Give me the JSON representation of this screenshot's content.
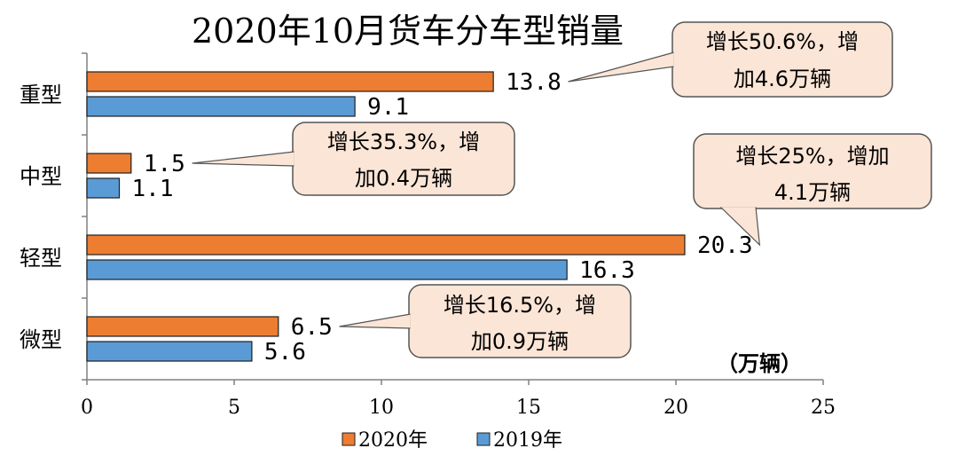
{
  "chart_data": {
    "type": "bar",
    "orientation": "horizontal",
    "title": "2020年10月货车分车型销量",
    "categories": [
      "重型",
      "中型",
      "轻型",
      "微型"
    ],
    "series": [
      {
        "name": "2020年",
        "values": [
          13.8,
          1.5,
          20.3,
          6.5
        ],
        "color": "#ED7D31"
      },
      {
        "name": "2019年",
        "values": [
          9.1,
          1.1,
          16.3,
          5.6
        ],
        "color": "#5B9BD5"
      }
    ],
    "value_labels": {
      "2020年": [
        "13.8",
        "1.5",
        "20.3",
        "6.5"
      ],
      "2019年": [
        "9.1",
        "1.1",
        "16.3",
        "5.6"
      ]
    },
    "xlim": [
      0,
      25
    ],
    "xticks": [
      "0",
      "5",
      "10",
      "15",
      "20",
      "25"
    ],
    "unit_label": "（万辆）",
    "legend": "bottom",
    "grid": false,
    "annotations": [
      {
        "category": "重型",
        "lines": [
          "增长50.6%，增",
          "加4.6万辆"
        ]
      },
      {
        "category": "中型",
        "lines": [
          "增长35.3%，增",
          "加0.4万辆"
        ]
      },
      {
        "category": "轻型",
        "lines": [
          "增长25%，增加",
          "4.1万辆"
        ]
      },
      {
        "category": "微型",
        "lines": [
          "增长16.5%，增",
          "加0.9万辆"
        ]
      }
    ],
    "annotation_fill": "#FBE5D6"
  }
}
